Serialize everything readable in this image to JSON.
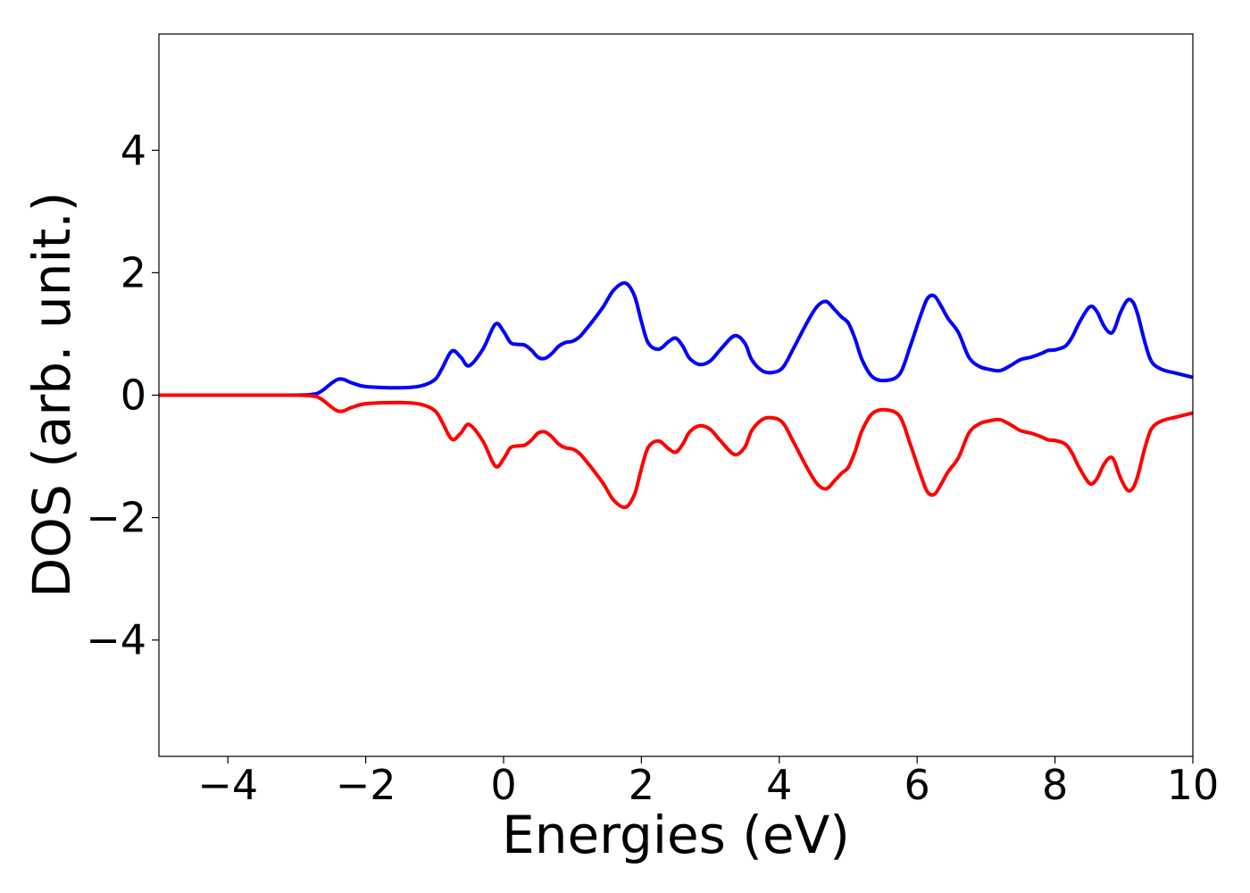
{
  "chart_data": {
    "type": "line",
    "title": "",
    "xlabel": "Energies (eV)",
    "ylabel": "DOS (arb. unit.)",
    "xlim": [
      -5,
      10
    ],
    "ylim": [
      -5.9,
      5.9
    ],
    "xticks": [
      -4,
      -2,
      0,
      2,
      4,
      6,
      8,
      10
    ],
    "xtick_labels": [
      "−4",
      "−2",
      "0",
      "2",
      "4",
      "6",
      "8",
      "10"
    ],
    "yticks": [
      -4,
      -2,
      0,
      2,
      4
    ],
    "ytick_labels": [
      "−4",
      "−2",
      "0",
      "2",
      "4"
    ],
    "grid": false,
    "legend": "none",
    "series": [
      {
        "color": "#0000ff",
        "x": [
          -5,
          -3.2,
          -2.8,
          -2.65,
          -2.4,
          -2.2,
          -2.0,
          -1.5,
          -1.2,
          -1.0,
          -0.9,
          -0.75,
          -0.62,
          -0.5,
          -0.3,
          -0.12,
          0.0,
          0.1,
          0.2,
          0.3,
          0.4,
          0.5,
          0.6,
          0.7,
          0.8,
          0.9,
          1.0,
          1.1,
          1.2,
          1.3,
          1.45,
          1.6,
          1.77,
          1.9,
          2.0,
          2.1,
          2.25,
          2.4,
          2.5,
          2.6,
          2.7,
          2.85,
          3.0,
          3.15,
          3.35,
          3.5,
          3.6,
          3.75,
          3.9,
          4.05,
          4.2,
          4.4,
          4.55,
          4.68,
          4.8,
          4.9,
          5.0,
          5.1,
          5.2,
          5.35,
          5.55,
          5.75,
          5.9,
          6.05,
          6.15,
          6.25,
          6.35,
          6.45,
          6.6,
          6.75,
          6.9,
          7.05,
          7.2,
          7.35,
          7.5,
          7.65,
          7.8,
          7.9,
          8.0,
          8.15,
          8.25,
          8.35,
          8.5,
          8.6,
          8.7,
          8.78,
          8.85,
          8.95,
          9.05,
          9.13,
          9.2,
          9.3,
          9.4,
          9.55,
          9.75,
          10.0
        ],
        "y": [
          0.0,
          0.0,
          0.01,
          0.06,
          0.26,
          0.2,
          0.14,
          0.12,
          0.15,
          0.25,
          0.42,
          0.72,
          0.62,
          0.48,
          0.75,
          1.16,
          1.04,
          0.86,
          0.83,
          0.82,
          0.74,
          0.62,
          0.6,
          0.68,
          0.8,
          0.86,
          0.88,
          0.95,
          1.08,
          1.22,
          1.45,
          1.72,
          1.83,
          1.62,
          1.2,
          0.85,
          0.75,
          0.88,
          0.93,
          0.8,
          0.6,
          0.5,
          0.56,
          0.75,
          0.97,
          0.85,
          0.58,
          0.4,
          0.37,
          0.45,
          0.75,
          1.18,
          1.45,
          1.53,
          1.4,
          1.28,
          1.18,
          0.92,
          0.58,
          0.3,
          0.24,
          0.35,
          0.8,
          1.3,
          1.58,
          1.62,
          1.45,
          1.25,
          1.02,
          0.62,
          0.47,
          0.42,
          0.4,
          0.48,
          0.58,
          0.62,
          0.68,
          0.73,
          0.74,
          0.8,
          0.95,
          1.18,
          1.44,
          1.38,
          1.15,
          1.03,
          1.05,
          1.35,
          1.55,
          1.52,
          1.32,
          0.88,
          0.55,
          0.42,
          0.36,
          0.29
        ]
      },
      {
        "color": "#ff0000",
        "x": [
          -5,
          -3.2,
          -2.8,
          -2.65,
          -2.4,
          -2.2,
          -2.0,
          -1.5,
          -1.2,
          -1.0,
          -0.9,
          -0.75,
          -0.62,
          -0.5,
          -0.3,
          -0.12,
          0.0,
          0.1,
          0.2,
          0.3,
          0.4,
          0.5,
          0.6,
          0.7,
          0.8,
          0.9,
          1.0,
          1.1,
          1.2,
          1.3,
          1.45,
          1.6,
          1.77,
          1.9,
          2.0,
          2.1,
          2.25,
          2.4,
          2.5,
          2.6,
          2.7,
          2.85,
          3.0,
          3.15,
          3.35,
          3.5,
          3.6,
          3.75,
          3.9,
          4.05,
          4.2,
          4.4,
          4.55,
          4.68,
          4.8,
          4.9,
          5.0,
          5.1,
          5.2,
          5.35,
          5.55,
          5.75,
          5.9,
          6.05,
          6.15,
          6.25,
          6.35,
          6.45,
          6.6,
          6.75,
          6.9,
          7.05,
          7.2,
          7.35,
          7.5,
          7.65,
          7.8,
          7.9,
          8.0,
          8.15,
          8.25,
          8.35,
          8.5,
          8.6,
          8.7,
          8.78,
          8.85,
          8.95,
          9.05,
          9.13,
          9.2,
          9.3,
          9.4,
          9.55,
          9.75,
          10.0
        ],
        "y": [
          0.0,
          0.0,
          -0.01,
          -0.06,
          -0.26,
          -0.2,
          -0.14,
          -0.12,
          -0.15,
          -0.25,
          -0.42,
          -0.72,
          -0.62,
          -0.48,
          -0.75,
          -1.16,
          -1.04,
          -0.86,
          -0.83,
          -0.82,
          -0.74,
          -0.62,
          -0.6,
          -0.68,
          -0.8,
          -0.86,
          -0.88,
          -0.95,
          -1.08,
          -1.22,
          -1.45,
          -1.72,
          -1.83,
          -1.62,
          -1.2,
          -0.85,
          -0.75,
          -0.88,
          -0.93,
          -0.8,
          -0.6,
          -0.5,
          -0.56,
          -0.75,
          -0.97,
          -0.85,
          -0.58,
          -0.4,
          -0.37,
          -0.45,
          -0.75,
          -1.18,
          -1.45,
          -1.53,
          -1.4,
          -1.28,
          -1.18,
          -0.92,
          -0.58,
          -0.3,
          -0.24,
          -0.35,
          -0.8,
          -1.3,
          -1.58,
          -1.62,
          -1.45,
          -1.25,
          -1.02,
          -0.62,
          -0.47,
          -0.42,
          -0.4,
          -0.48,
          -0.58,
          -0.62,
          -0.68,
          -0.73,
          -0.74,
          -0.8,
          -0.95,
          -1.18,
          -1.44,
          -1.38,
          -1.15,
          -1.03,
          -1.05,
          -1.35,
          -1.55,
          -1.52,
          -1.32,
          -0.88,
          -0.55,
          -0.42,
          -0.36,
          -0.29
        ]
      }
    ]
  }
}
